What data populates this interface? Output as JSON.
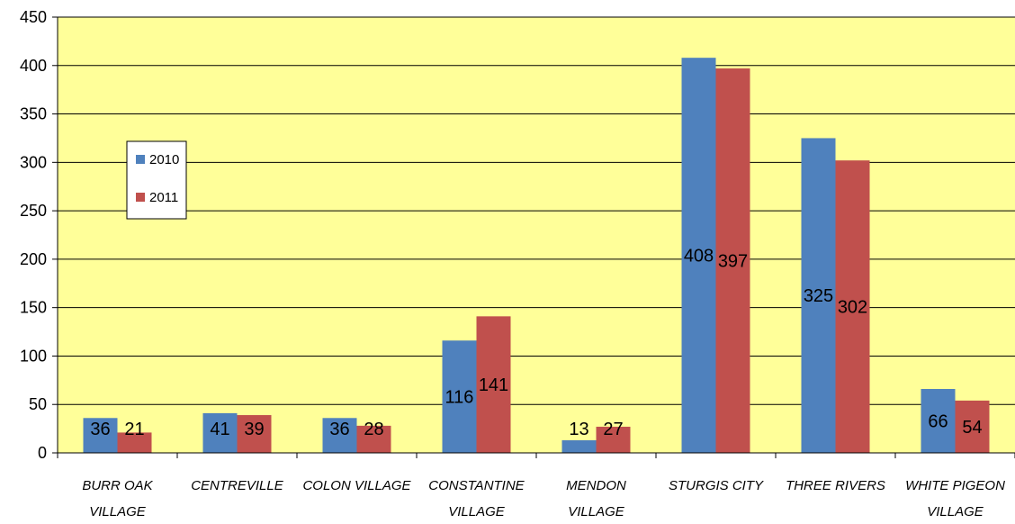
{
  "chart_data": {
    "type": "bar",
    "title": "",
    "xlabel": "",
    "ylabel": "",
    "categories": [
      [
        "BURR OAK",
        "VILLAGE"
      ],
      [
        "CENTREVILLE"
      ],
      [
        "COLON VILLAGE"
      ],
      [
        "CONSTANTINE",
        "VILLAGE"
      ],
      [
        "MENDON",
        "VILLAGE"
      ],
      [
        "STURGIS CITY"
      ],
      [
        "THREE RIVERS"
      ],
      [
        "WHITE PIGEON",
        "VILLAGE"
      ]
    ],
    "series": [
      {
        "name": "2010",
        "color": "#4F81BD",
        "values": [
          36,
          41,
          36,
          116,
          13,
          408,
          325,
          66
        ]
      },
      {
        "name": "2011",
        "color": "#C0504D",
        "values": [
          21,
          39,
          28,
          141,
          27,
          397,
          302,
          54
        ]
      }
    ],
    "ylim": [
      0,
      450
    ],
    "yticks": [
      0,
      50,
      100,
      150,
      200,
      250,
      300,
      350,
      400,
      450
    ],
    "grid": true,
    "legend_position": "left",
    "plot_background": "#FFFF99"
  }
}
